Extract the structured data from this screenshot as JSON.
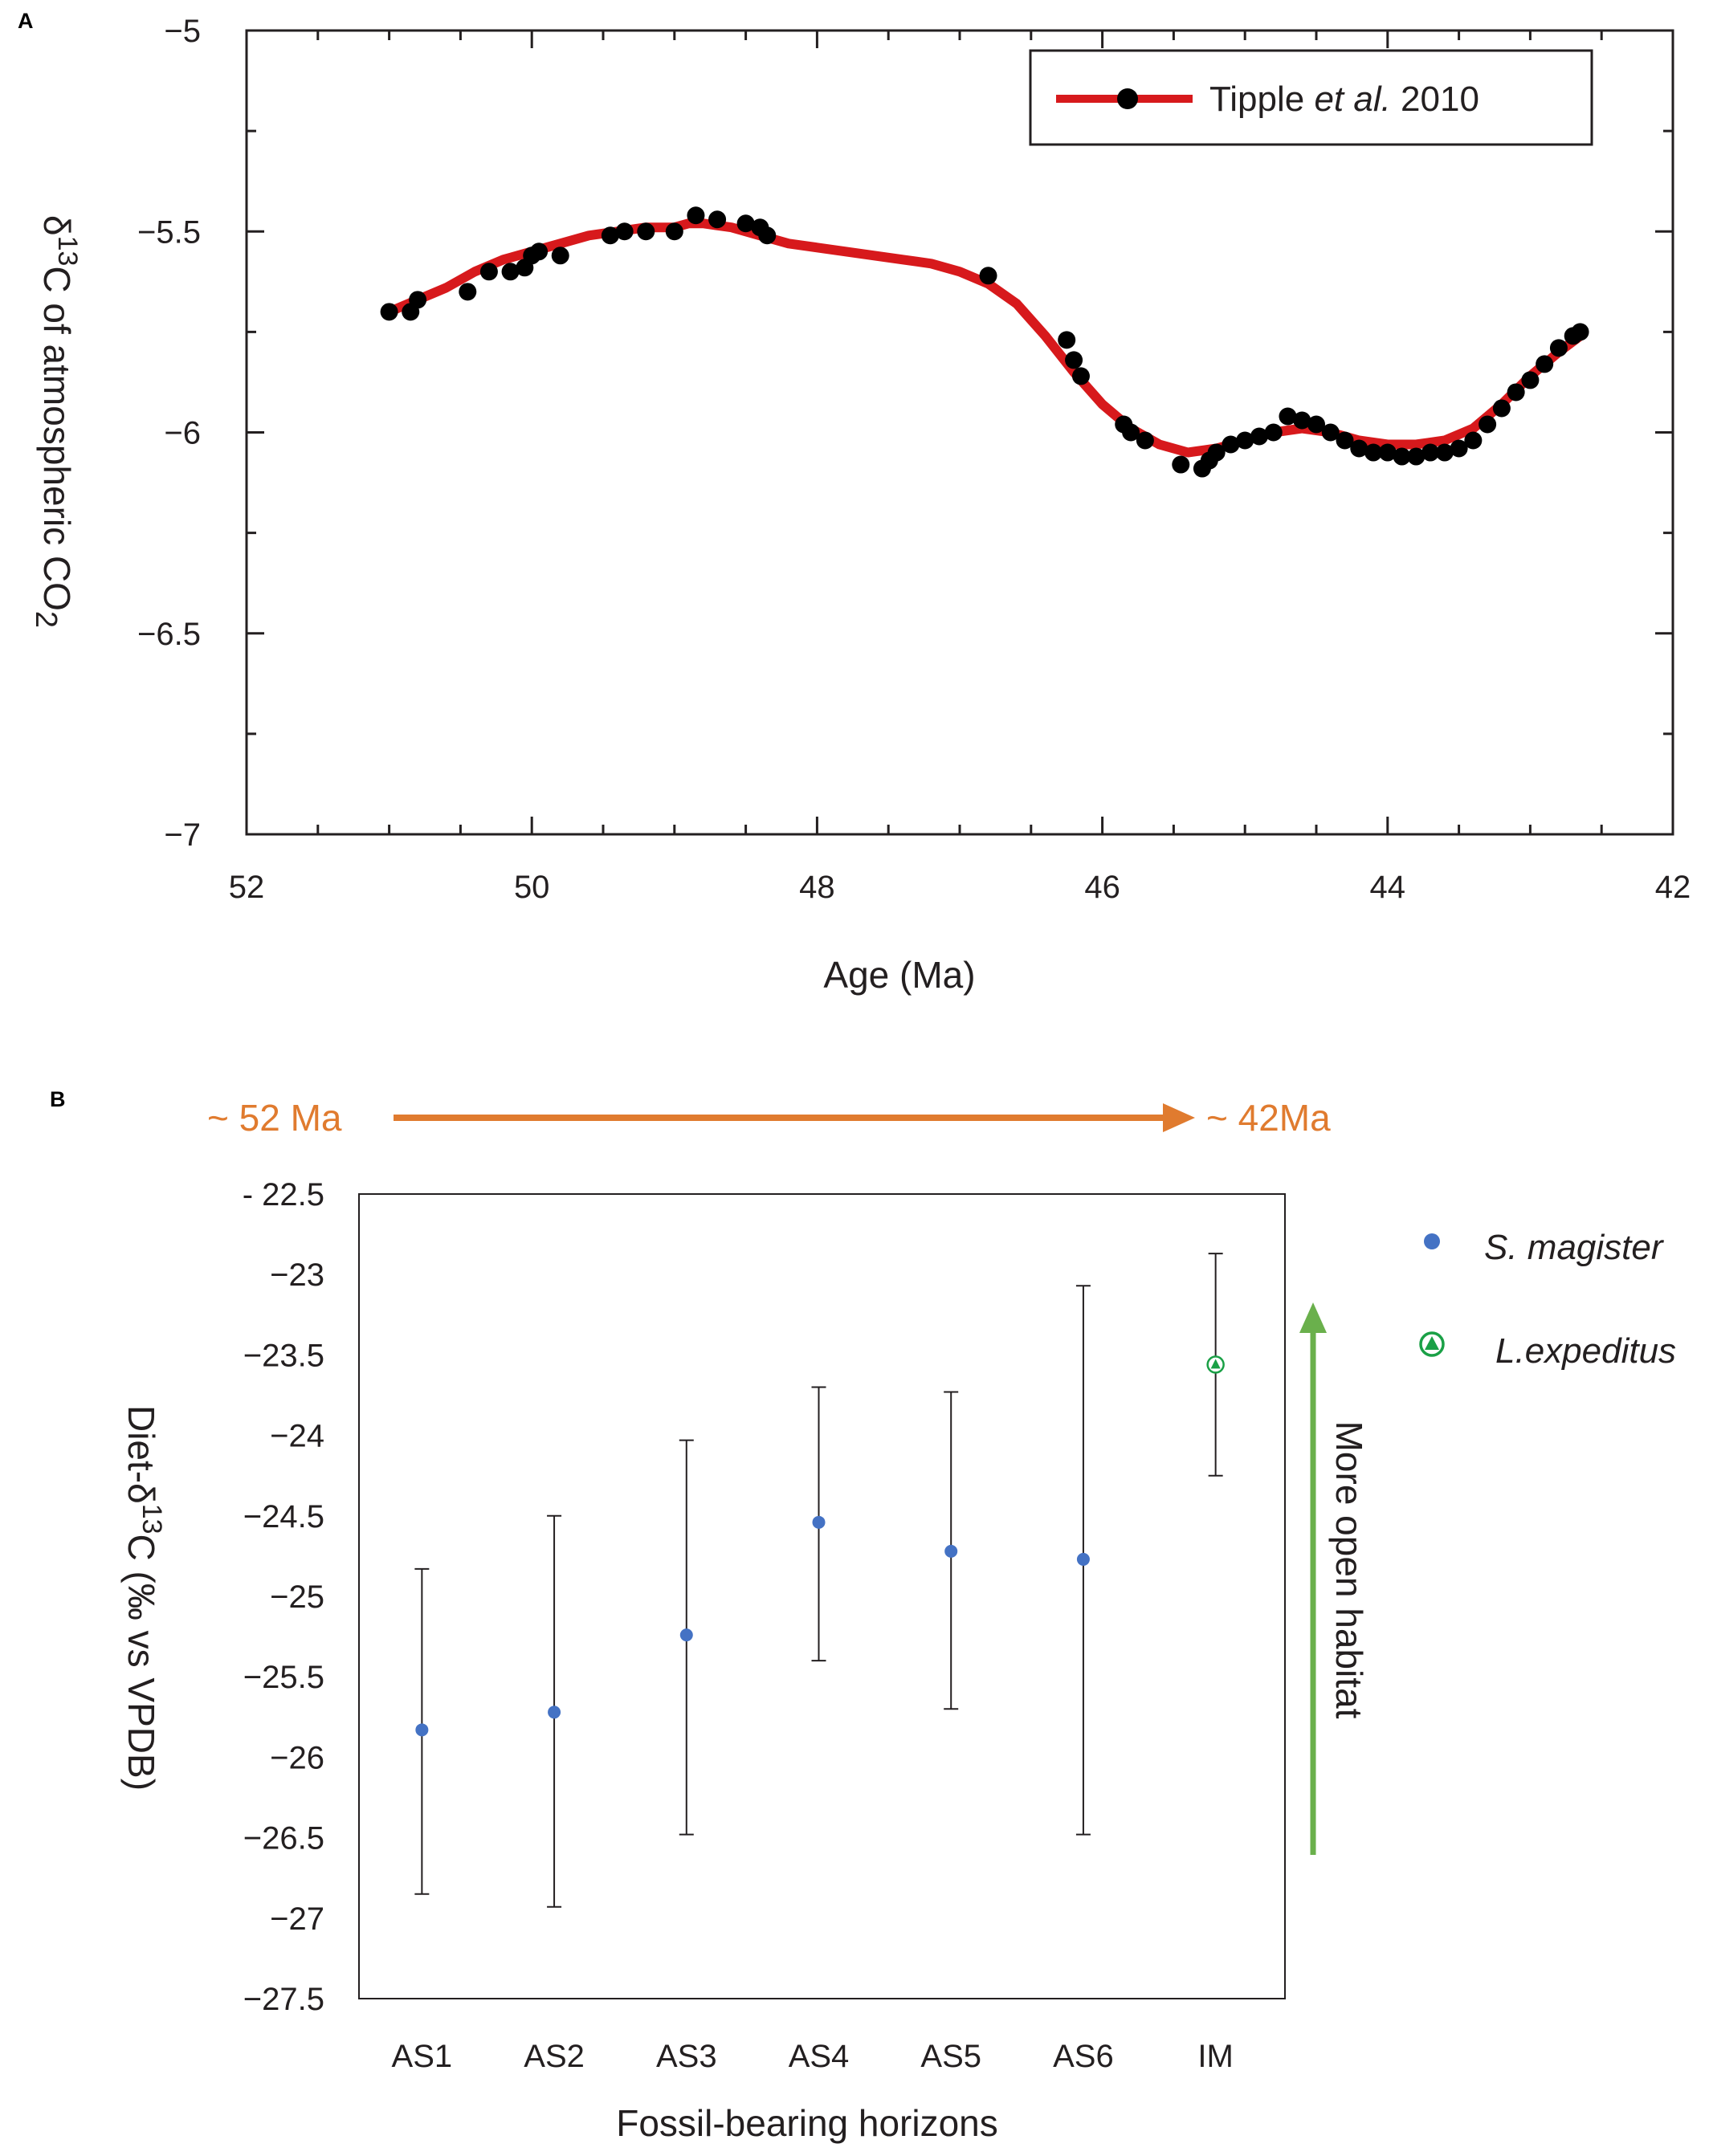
{
  "colors": {
    "fit_line": "#d7191c",
    "points": "#000000",
    "s_magister": "#4472c4",
    "l_expeditus": "#1aa046",
    "time_arrow": "#e07b2f",
    "habitat_arrow": "#6ab04c"
  },
  "chart_data": [
    {
      "type": "line",
      "panel_label": "A",
      "xlabel": "Age (Ma)",
      "ylabel_parts": [
        "δ",
        "13",
        "C of atmospheric CO",
        "2"
      ],
      "xlim": [
        52,
        42
      ],
      "ylim": [
        -7,
        -5
      ],
      "x_reversed": true,
      "x_ticks": [
        52,
        50,
        48,
        46,
        44,
        42
      ],
      "y_ticks": [
        -5,
        -5.5,
        -6,
        -6.5,
        -7
      ],
      "y_tick_labels": [
        "−5",
        "−5.5",
        "−6",
        "−6.5",
        "−7"
      ],
      "grid": false,
      "legend_position": "top-right",
      "legend": {
        "name_parts": [
          "Tipple ",
          "et al.",
          " 2010"
        ]
      },
      "series": [
        {
          "name": "Tipple et al. 2010",
          "fit": [
            [
              51.0,
              -5.7
            ],
            [
              50.8,
              -5.67
            ],
            [
              50.6,
              -5.64
            ],
            [
              50.4,
              -5.6
            ],
            [
              50.2,
              -5.57
            ],
            [
              50.0,
              -5.55
            ],
            [
              49.8,
              -5.53
            ],
            [
              49.6,
              -5.51
            ],
            [
              49.4,
              -5.5
            ],
            [
              49.2,
              -5.49
            ],
            [
              49.0,
              -5.49
            ],
            [
              48.9,
              -5.48
            ],
            [
              48.8,
              -5.48
            ],
            [
              48.6,
              -5.49
            ],
            [
              48.4,
              -5.51
            ],
            [
              48.2,
              -5.53
            ],
            [
              48.0,
              -5.54
            ],
            [
              47.8,
              -5.55
            ],
            [
              47.6,
              -5.56
            ],
            [
              47.4,
              -5.57
            ],
            [
              47.2,
              -5.58
            ],
            [
              47.0,
              -5.6
            ],
            [
              46.8,
              -5.63
            ],
            [
              46.6,
              -5.68
            ],
            [
              46.4,
              -5.76
            ],
            [
              46.2,
              -5.85
            ],
            [
              46.0,
              -5.93
            ],
            [
              45.8,
              -5.99
            ],
            [
              45.6,
              -6.03
            ],
            [
              45.4,
              -6.05
            ],
            [
              45.2,
              -6.04
            ],
            [
              45.0,
              -6.02
            ],
            [
              44.8,
              -6.0
            ],
            [
              44.6,
              -5.99
            ],
            [
              44.4,
              -6.0
            ],
            [
              44.2,
              -6.02
            ],
            [
              44.0,
              -6.03
            ],
            [
              43.8,
              -6.03
            ],
            [
              43.6,
              -6.02
            ],
            [
              43.4,
              -5.99
            ],
            [
              43.2,
              -5.93
            ],
            [
              43.0,
              -5.86
            ],
            [
              42.8,
              -5.8
            ],
            [
              42.65,
              -5.76
            ]
          ],
          "points": [
            [
              51.0,
              -5.7
            ],
            [
              50.85,
              -5.7
            ],
            [
              50.8,
              -5.67
            ],
            [
              50.45,
              -5.65
            ],
            [
              50.3,
              -5.6
            ],
            [
              50.15,
              -5.6
            ],
            [
              50.05,
              -5.59
            ],
            [
              50.0,
              -5.56
            ],
            [
              49.95,
              -5.55
            ],
            [
              49.8,
              -5.56
            ],
            [
              49.45,
              -5.51
            ],
            [
              49.35,
              -5.5
            ],
            [
              49.2,
              -5.5
            ],
            [
              49.0,
              -5.5
            ],
            [
              48.85,
              -5.46
            ],
            [
              48.7,
              -5.47
            ],
            [
              48.5,
              -5.48
            ],
            [
              48.4,
              -5.49
            ],
            [
              48.35,
              -5.51
            ],
            [
              46.8,
              -5.61
            ],
            [
              46.25,
              -5.77
            ],
            [
              46.2,
              -5.82
            ],
            [
              46.15,
              -5.86
            ],
            [
              45.85,
              -5.98
            ],
            [
              45.8,
              -6.0
            ],
            [
              45.7,
              -6.02
            ],
            [
              45.45,
              -6.08
            ],
            [
              45.3,
              -6.09
            ],
            [
              45.25,
              -6.07
            ],
            [
              45.2,
              -6.05
            ],
            [
              45.1,
              -6.03
            ],
            [
              45.0,
              -6.02
            ],
            [
              44.9,
              -6.01
            ],
            [
              44.8,
              -6.0
            ],
            [
              44.7,
              -5.96
            ],
            [
              44.6,
              -5.97
            ],
            [
              44.5,
              -5.98
            ],
            [
              44.4,
              -6.0
            ],
            [
              44.3,
              -6.02
            ],
            [
              44.2,
              -6.04
            ],
            [
              44.1,
              -6.05
            ],
            [
              44.0,
              -6.05
            ],
            [
              43.9,
              -6.06
            ],
            [
              43.8,
              -6.06
            ],
            [
              43.7,
              -6.05
            ],
            [
              43.6,
              -6.05
            ],
            [
              43.5,
              -6.04
            ],
            [
              43.4,
              -6.02
            ],
            [
              43.3,
              -5.98
            ],
            [
              43.2,
              -5.94
            ],
            [
              43.1,
              -5.9
            ],
            [
              43.0,
              -5.87
            ],
            [
              42.9,
              -5.83
            ],
            [
              42.8,
              -5.79
            ],
            [
              42.7,
              -5.76
            ],
            [
              42.65,
              -5.75
            ]
          ]
        }
      ]
    },
    {
      "type": "scatter",
      "panel_label": "B",
      "xlabel": "Fossil-bearing horizons",
      "ylabel_parts": [
        "Diet-δ",
        "13",
        "C (‰ vs  VPDB)"
      ],
      "categories": [
        "AS1",
        "AS2",
        "AS3",
        "AS4",
        "AS5",
        "AS6",
        "IM"
      ],
      "ylim": [
        -27.5,
        -22.5
      ],
      "y_ticks": [
        -22.5,
        -23,
        -23.5,
        -24,
        -24.5,
        -25,
        -25.5,
        -26,
        -26.5,
        -27,
        -27.5
      ],
      "y_tick_labels": [
        "- 22.5",
        "−23",
        "−23.5",
        "−24",
        "−24.5",
        "−25",
        "−25.5",
        "−26",
        "−26.5",
        "−27",
        "−27.5"
      ],
      "grid": false,
      "legend_position": "right",
      "series": [
        {
          "name": "S. magister",
          "marker": "circle",
          "points": [
            {
              "category": "AS1",
              "value": -25.83,
              "err_low": -26.85,
              "err_high": -24.83
            },
            {
              "category": "AS2",
              "value": -25.72,
              "err_low": -26.93,
              "err_high": -24.5
            },
            {
              "category": "AS3",
              "value": -25.24,
              "err_low": -26.48,
              "err_high": -24.03
            },
            {
              "category": "AS4",
              "value": -24.54,
              "err_low": -25.4,
              "err_high": -23.7
            },
            {
              "category": "AS5",
              "value": -24.72,
              "err_low": -25.7,
              "err_high": -23.73
            },
            {
              "category": "AS6",
              "value": -24.77,
              "err_low": -26.48,
              "err_high": -23.07
            }
          ]
        },
        {
          "name": "L.expeditus",
          "marker": "circled-triangle",
          "points": [
            {
              "category": "IM",
              "value": -23.56,
              "err_low": -24.25,
              "err_high": -22.87
            }
          ]
        }
      ],
      "annotations": {
        "time_arrow": {
          "start_label": "~ 52 Ma",
          "end_label": "~ 42Ma"
        },
        "habitat_arrow": {
          "label": "More open habitat"
        }
      }
    }
  ]
}
